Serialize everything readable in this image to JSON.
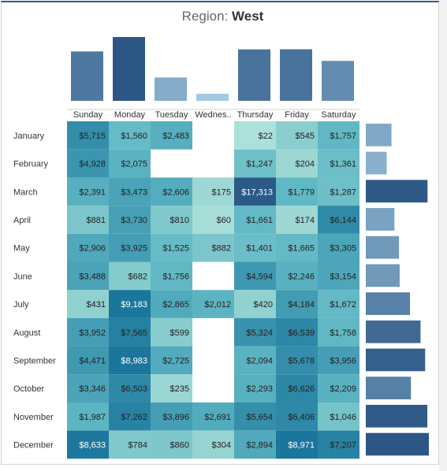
{
  "title": {
    "prefix": "Region:",
    "value": "West"
  },
  "chart_data": {
    "type": "heatmap",
    "title": "Region: West",
    "columns": [
      "Sunday",
      "Monday",
      "Tuesday",
      "Wednes..",
      "Thursday",
      "Friday",
      "Saturday"
    ],
    "rows": [
      "January",
      "February",
      "March",
      "April",
      "May",
      "June",
      "July",
      "August",
      "September",
      "October",
      "November",
      "December"
    ],
    "cells": [
      [
        "$5,715",
        "$1,560",
        "$2,483",
        null,
        "$22",
        "$545",
        "$1,757"
      ],
      [
        "$4,928",
        "$2,075",
        null,
        null,
        "$1,247",
        "$204",
        "$1,361"
      ],
      [
        "$2,391",
        "$3,473",
        "$2,606",
        "$175",
        "$17,313",
        "$1,779",
        "$1,287"
      ],
      [
        "$881",
        "$3,730",
        "$810",
        "$60",
        "$1,661",
        "$174",
        "$6,144"
      ],
      [
        "$2,906",
        "$3,925",
        "$1,525",
        "$882",
        "$1,401",
        "$1,665",
        "$3,305"
      ],
      [
        "$3,488",
        "$682",
        "$1,756",
        null,
        "$4,594",
        "$2,246",
        "$3,154"
      ],
      [
        "$431",
        "$9,183",
        "$2,865",
        "$2,012",
        "$420",
        "$4,184",
        "$1,672"
      ],
      [
        "$3,952",
        "$7,565",
        "$599",
        null,
        "$5,324",
        "$6,539",
        "$1,758"
      ],
      [
        "$4,471",
        "$8,983",
        "$2,725",
        null,
        "$2,094",
        "$5,678",
        "$3,956"
      ],
      [
        "$3,346",
        "$6,503",
        "$235",
        null,
        "$2,293",
        "$6,626",
        "$2,209"
      ],
      [
        "$1,987",
        "$7,262",
        "$3,896",
        "$2,691",
        "$5,654",
        "$6,406",
        "$1,046"
      ],
      [
        "$8,633",
        "$784",
        "$860",
        "$304",
        "$2,894",
        "$8,971",
        "$7,207"
      ]
    ]
  }
}
